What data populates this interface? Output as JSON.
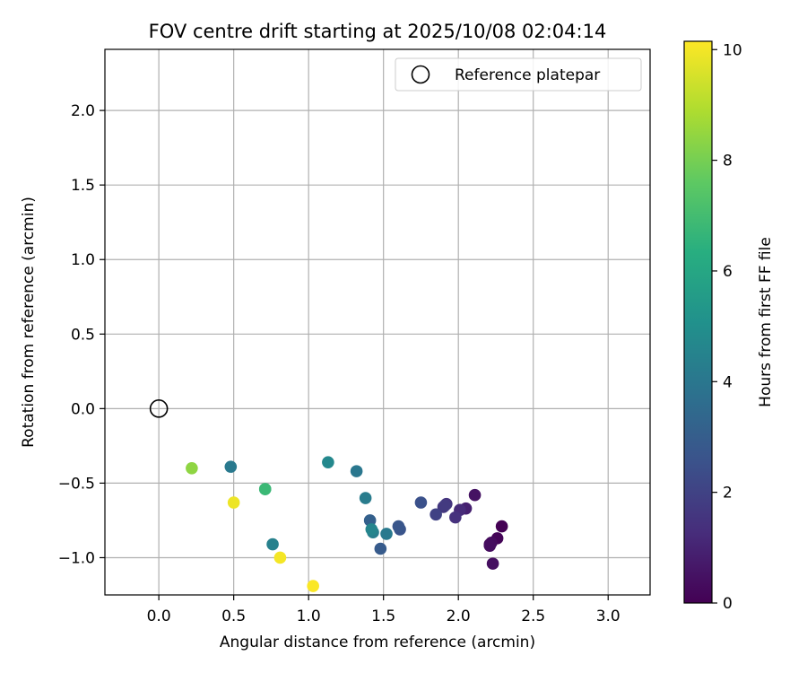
{
  "chart_data": {
    "type": "scatter",
    "title": "FOV centre drift starting at 2025/10/08 02:04:14",
    "xlabel": "Angular distance from reference (arcmin)",
    "ylabel": "Rotation from reference (arcmin)",
    "xlim": [
      -0.36,
      3.28
    ],
    "ylim": [
      -1.25,
      2.41
    ],
    "xticks": [
      "0.0",
      "0.5",
      "1.0",
      "1.5",
      "2.0",
      "2.5",
      "3.0"
    ],
    "xtick_values": [
      0.0,
      0.5,
      1.0,
      1.5,
      2.0,
      2.5,
      3.0
    ],
    "yticks": [
      "−1.0",
      "−0.5",
      "0.0",
      "0.5",
      "1.0",
      "1.5",
      "2.0"
    ],
    "ytick_values": [
      -1.0,
      -0.5,
      0.0,
      0.5,
      1.0,
      1.5,
      2.0
    ],
    "grid": true,
    "legend": {
      "position": "upper-right",
      "entries": [
        "Reference platepar"
      ]
    },
    "reference_point": {
      "x": 0.0,
      "y": 0.0
    },
    "colorbar": {
      "label": "Hours from first FF file",
      "range": [
        0,
        10.15
      ],
      "ticks": [
        "0",
        "2",
        "4",
        "6",
        "8",
        "10"
      ],
      "tick_values": [
        0,
        2,
        4,
        6,
        8,
        10
      ],
      "colormap": "viridis"
    },
    "points": [
      {
        "x": 2.29,
        "y": -0.79,
        "hours": 0.0
      },
      {
        "x": 2.26,
        "y": -0.87,
        "hours": 0.1
      },
      {
        "x": 2.21,
        "y": -0.91,
        "hours": 0.2
      },
      {
        "x": 2.22,
        "y": -0.9,
        "hours": 0.3
      },
      {
        "x": 2.21,
        "y": -0.92,
        "hours": 0.35
      },
      {
        "x": 2.23,
        "y": -1.04,
        "hours": 0.4
      },
      {
        "x": 2.11,
        "y": -0.58,
        "hours": 0.5
      },
      {
        "x": 2.05,
        "y": -0.67,
        "hours": 0.9
      },
      {
        "x": 2.01,
        "y": -0.68,
        "hours": 1.2
      },
      {
        "x": 1.98,
        "y": -0.73,
        "hours": 1.4
      },
      {
        "x": 1.92,
        "y": -0.64,
        "hours": 1.5
      },
      {
        "x": 1.9,
        "y": -0.66,
        "hours": 1.6
      },
      {
        "x": 1.91,
        "y": -0.65,
        "hours": 1.7
      },
      {
        "x": 1.85,
        "y": -0.71,
        "hours": 2.0
      },
      {
        "x": 1.75,
        "y": -0.63,
        "hours": 2.5
      },
      {
        "x": 1.61,
        "y": -0.81,
        "hours": 2.6
      },
      {
        "x": 1.6,
        "y": -0.79,
        "hours": 2.7
      },
      {
        "x": 1.48,
        "y": -0.94,
        "hours": 2.9
      },
      {
        "x": 1.41,
        "y": -0.75,
        "hours": 3.1
      },
      {
        "x": 1.52,
        "y": -0.84,
        "hours": 4.1
      },
      {
        "x": 1.43,
        "y": -0.83,
        "hours": 4.3
      },
      {
        "x": 1.42,
        "y": -0.81,
        "hours": 4.6
      },
      {
        "x": 1.38,
        "y": -0.6,
        "hours": 4.2
      },
      {
        "x": 1.32,
        "y": -0.42,
        "hours": 4.0
      },
      {
        "x": 1.13,
        "y": -0.36,
        "hours": 4.7
      },
      {
        "x": 0.76,
        "y": -0.91,
        "hours": 4.4
      },
      {
        "x": 0.48,
        "y": -0.39,
        "hours": 4.1
      },
      {
        "x": 0.71,
        "y": -0.54,
        "hours": 6.4
      },
      {
        "x": 0.71,
        "y": -0.54,
        "hours": 6.8
      },
      {
        "x": 0.22,
        "y": -0.4,
        "hours": 8.4
      },
      {
        "x": 0.5,
        "y": -0.63,
        "hours": 9.9
      },
      {
        "x": 0.81,
        "y": -1.0,
        "hours": 10.0
      },
      {
        "x": 1.03,
        "y": -1.19,
        "hours": 10.1
      }
    ]
  }
}
